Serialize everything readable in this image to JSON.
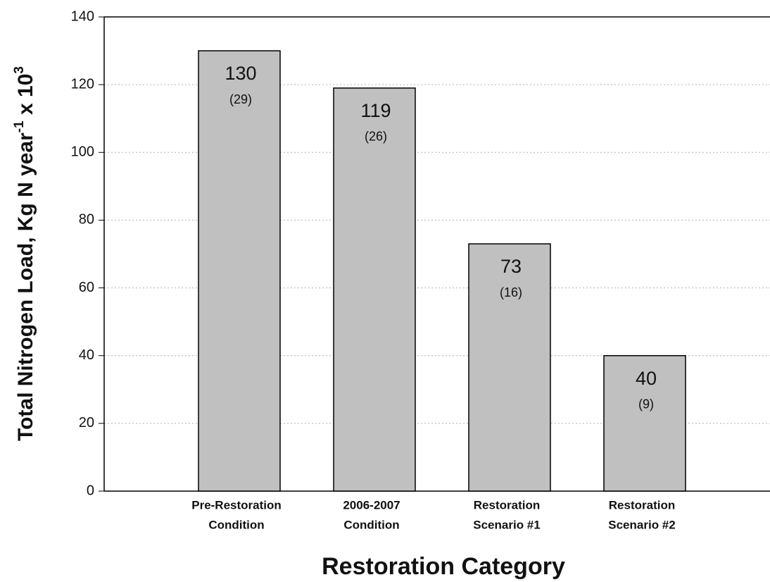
{
  "chart_data": {
    "type": "bar",
    "categories": [
      [
        "Pre-Restoration",
        "Condition"
      ],
      [
        "2006-2007",
        "Condition"
      ],
      [
        "Restoration",
        "Scenario #1"
      ],
      [
        "Restoration",
        "Scenario #2"
      ]
    ],
    "values": [
      130,
      119,
      73,
      40
    ],
    "annotations": [
      "(29)",
      "(26)",
      "(16)",
      "(9)"
    ],
    "color": "#c0c0c0",
    "xlabel": "Restoration Category",
    "ylabel": [
      {
        "text": "Total Nitrogen Load, Kg N year"
      },
      {
        "text": "-1",
        "sup": true
      },
      {
        "text": " x 10"
      },
      {
        "text": "3",
        "sup": true
      }
    ],
    "ylim": [
      0,
      140
    ],
    "yticks": [
      0,
      20,
      40,
      60,
      80,
      100,
      120,
      140
    ],
    "grid": true
  }
}
